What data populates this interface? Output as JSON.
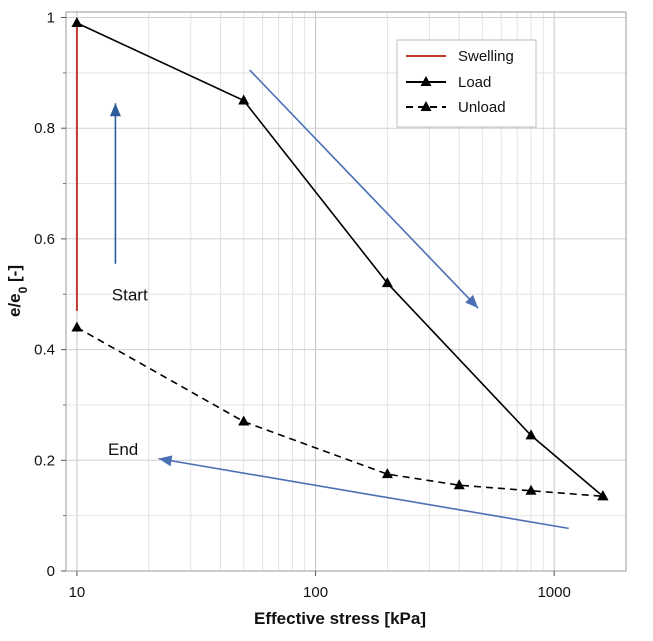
{
  "chart_data": {
    "type": "line",
    "xscale": "log",
    "xlabel": "Effective stress [kPa]",
    "ylabel_main": "e/e",
    "ylabel_sub": "0",
    "ylabel_suffix": " [-]",
    "xlim": [
      9,
      2000
    ],
    "ylim": [
      0,
      1
    ],
    "x_ticks": [
      10,
      100,
      1000
    ],
    "x_tick_labels": [
      "10",
      "100",
      "1000"
    ],
    "y_ticks": [
      0,
      0.2,
      0.4,
      0.6,
      0.8,
      1
    ],
    "y_tick_labels": [
      "0",
      "0.2",
      "0.4",
      "0.6",
      "0.8",
      "1"
    ],
    "grid": true,
    "legend_position": "top-right",
    "series": [
      {
        "name": "Swelling",
        "style": "solid",
        "color": "#c0392b",
        "marker": "none",
        "x": [
          10,
          10
        ],
        "y": [
          0.47,
          0.99
        ]
      },
      {
        "name": "Load",
        "style": "solid",
        "color": "#000000",
        "marker": "triangle",
        "x": [
          10,
          50,
          200,
          800,
          1600
        ],
        "y": [
          0.99,
          0.85,
          0.52,
          0.245,
          0.135
        ]
      },
      {
        "name": "Unload",
        "style": "dashed",
        "color": "#000000",
        "marker": "triangle",
        "x": [
          10,
          50,
          200,
          400,
          800,
          1600
        ],
        "y": [
          0.44,
          0.27,
          0.175,
          0.155,
          0.145,
          0.135
        ]
      }
    ],
    "annotations": [
      {
        "text": "Start",
        "x": 14,
        "y": 0.5
      },
      {
        "text": "End",
        "x": 13.5,
        "y": 0.22
      }
    ],
    "arrows": [
      {
        "name": "arrow-swelling",
        "color": "#2e5b9a",
        "from": [
          14.5,
          0.555
        ],
        "to": [
          14.5,
          0.845
        ]
      },
      {
        "name": "arrow-load",
        "color": "#4a6fb5",
        "from": [
          53,
          0.905
        ],
        "to": [
          480,
          0.475
        ]
      },
      {
        "name": "arrow-unload",
        "color": "#4a6fb5",
        "from": [
          1150,
          0.077
        ],
        "to": [
          22,
          0.203
        ]
      }
    ]
  }
}
